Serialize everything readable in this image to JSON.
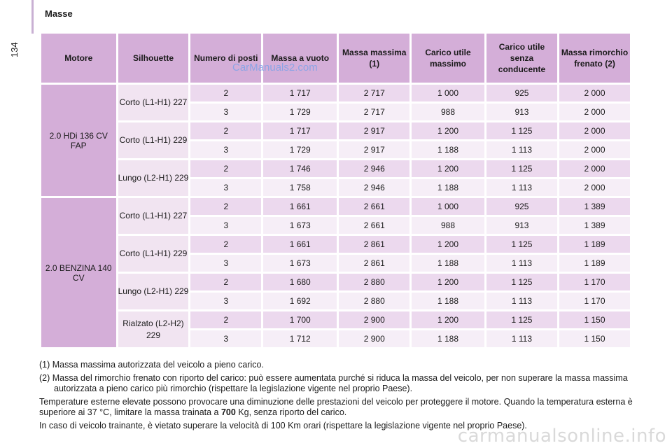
{
  "page_number": "134",
  "section_title": "Masse",
  "watermark": "CarManuals2.com",
  "footer_watermark": "carmanualsonline.info",
  "headers": [
    "Motore",
    "Silhouette",
    "Numero di posti",
    "Massa a vuoto",
    "Massa massima (1)",
    "Carico utile massimo",
    "Carico utile senza conducente",
    "Massa rimorchio frenato (2)"
  ],
  "engines": [
    {
      "name": "2.0 HDi 136 CV FAP",
      "groups": [
        {
          "silhouette": "Corto (L1-H1) 227",
          "rows": [
            [
              "2",
              "1 717",
              "2 717",
              "1 000",
              "925",
              "2 000"
            ],
            [
              "3",
              "1 729",
              "2 717",
              "988",
              "913",
              "2 000"
            ]
          ]
        },
        {
          "silhouette": "Corto (L1-H1) 229",
          "rows": [
            [
              "2",
              "1 717",
              "2 917",
              "1 200",
              "1 125",
              "2 000"
            ],
            [
              "3",
              "1 729",
              "2 917",
              "1 188",
              "1 113",
              "2 000"
            ]
          ]
        },
        {
          "silhouette": "Lungo (L2-H1) 229",
          "rows": [
            [
              "2",
              "1 746",
              "2 946",
              "1 200",
              "1 125",
              "2 000"
            ],
            [
              "3",
              "1 758",
              "2 946",
              "1 188",
              "1 113",
              "2 000"
            ]
          ]
        }
      ]
    },
    {
      "name": "2.0 BENZINA 140 CV",
      "groups": [
        {
          "silhouette": "Corto (L1-H1) 227",
          "rows": [
            [
              "2",
              "1 661",
              "2 661",
              "1 000",
              "925",
              "1 389"
            ],
            [
              "3",
              "1 673",
              "2 661",
              "988",
              "913",
              "1 389"
            ]
          ]
        },
        {
          "silhouette": "Corto (L1-H1) 229",
          "rows": [
            [
              "2",
              "1 661",
              "2 861",
              "1 200",
              "1 125",
              "1 189"
            ],
            [
              "3",
              "1 673",
              "2 861",
              "1 188",
              "1 113",
              "1 189"
            ]
          ]
        },
        {
          "silhouette": "Lungo (L2-H1) 229",
          "rows": [
            [
              "2",
              "1 680",
              "2 880",
              "1 200",
              "1 125",
              "1 170"
            ],
            [
              "3",
              "1 692",
              "2 880",
              "1 188",
              "1 113",
              "1 170"
            ]
          ]
        },
        {
          "silhouette": "Rialzato (L2-H2) 229",
          "rows": [
            [
              "2",
              "1 700",
              "2 900",
              "1 200",
              "1 125",
              "1 150"
            ],
            [
              "3",
              "1 712",
              "2 900",
              "1 188",
              "1 113",
              "1 150"
            ]
          ]
        }
      ]
    }
  ],
  "notes": {
    "note1": "(1) Massa massima autorizzata del veicolo a pieno carico.",
    "note2": "(2) Massa del rimorchio frenato con riporto del carico: può essere aumentata purché si riduca la massa del veicolo, per non superare la massa massima autorizzata a pieno carico più rimorchio (rispettare la legislazione vigente nel proprio Paese).",
    "temp_before": "Temperature esterne elevate possono provocare una diminuzione delle prestazioni del veicolo per proteggere il motore. Quando la temperatura esterna è superiore ai 37 °C, limitare la massa trainata a ",
    "temp_bold": "700",
    "temp_after": " Kg, senza riporto del carico.",
    "towing": "In caso di veicolo trainante, è vietato superare la velocità di 100 Km orari (rispettare la legislazione vigente nel proprio Paese)."
  },
  "colors": {
    "header_bg": "#d4aed8",
    "row_dark": "#ecd9ee",
    "row_light": "#f6eef7",
    "watermark": "#7fa3e8"
  }
}
